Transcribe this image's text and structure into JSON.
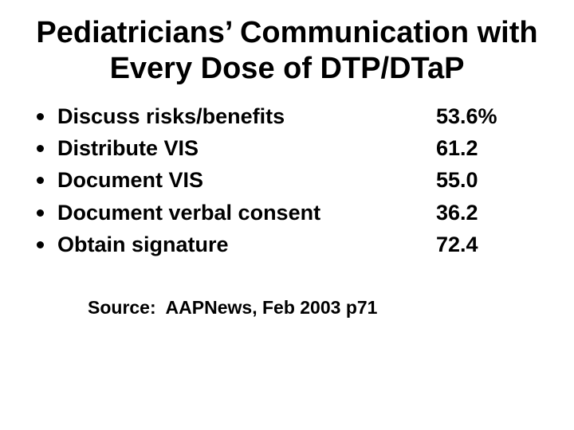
{
  "title": {
    "line1": "Pediatricians’ Communication with",
    "line2": "Every Dose of DTP/DTaP"
  },
  "list": {
    "items": [
      {
        "label": "Discuss risks/benefits",
        "value": "53.6%"
      },
      {
        "label": "Distribute VIS",
        "value": "61.2"
      },
      {
        "label": "Document VIS",
        "value": "55.0"
      },
      {
        "label": "Document verbal consent",
        "value": "36.2"
      },
      {
        "label": "Obtain signature",
        "value": "72.4"
      }
    ]
  },
  "source": {
    "text": "Source:  AAPNews, Feb 2003 p71"
  },
  "colors": {
    "background": "#ffffff",
    "text": "#000000"
  }
}
